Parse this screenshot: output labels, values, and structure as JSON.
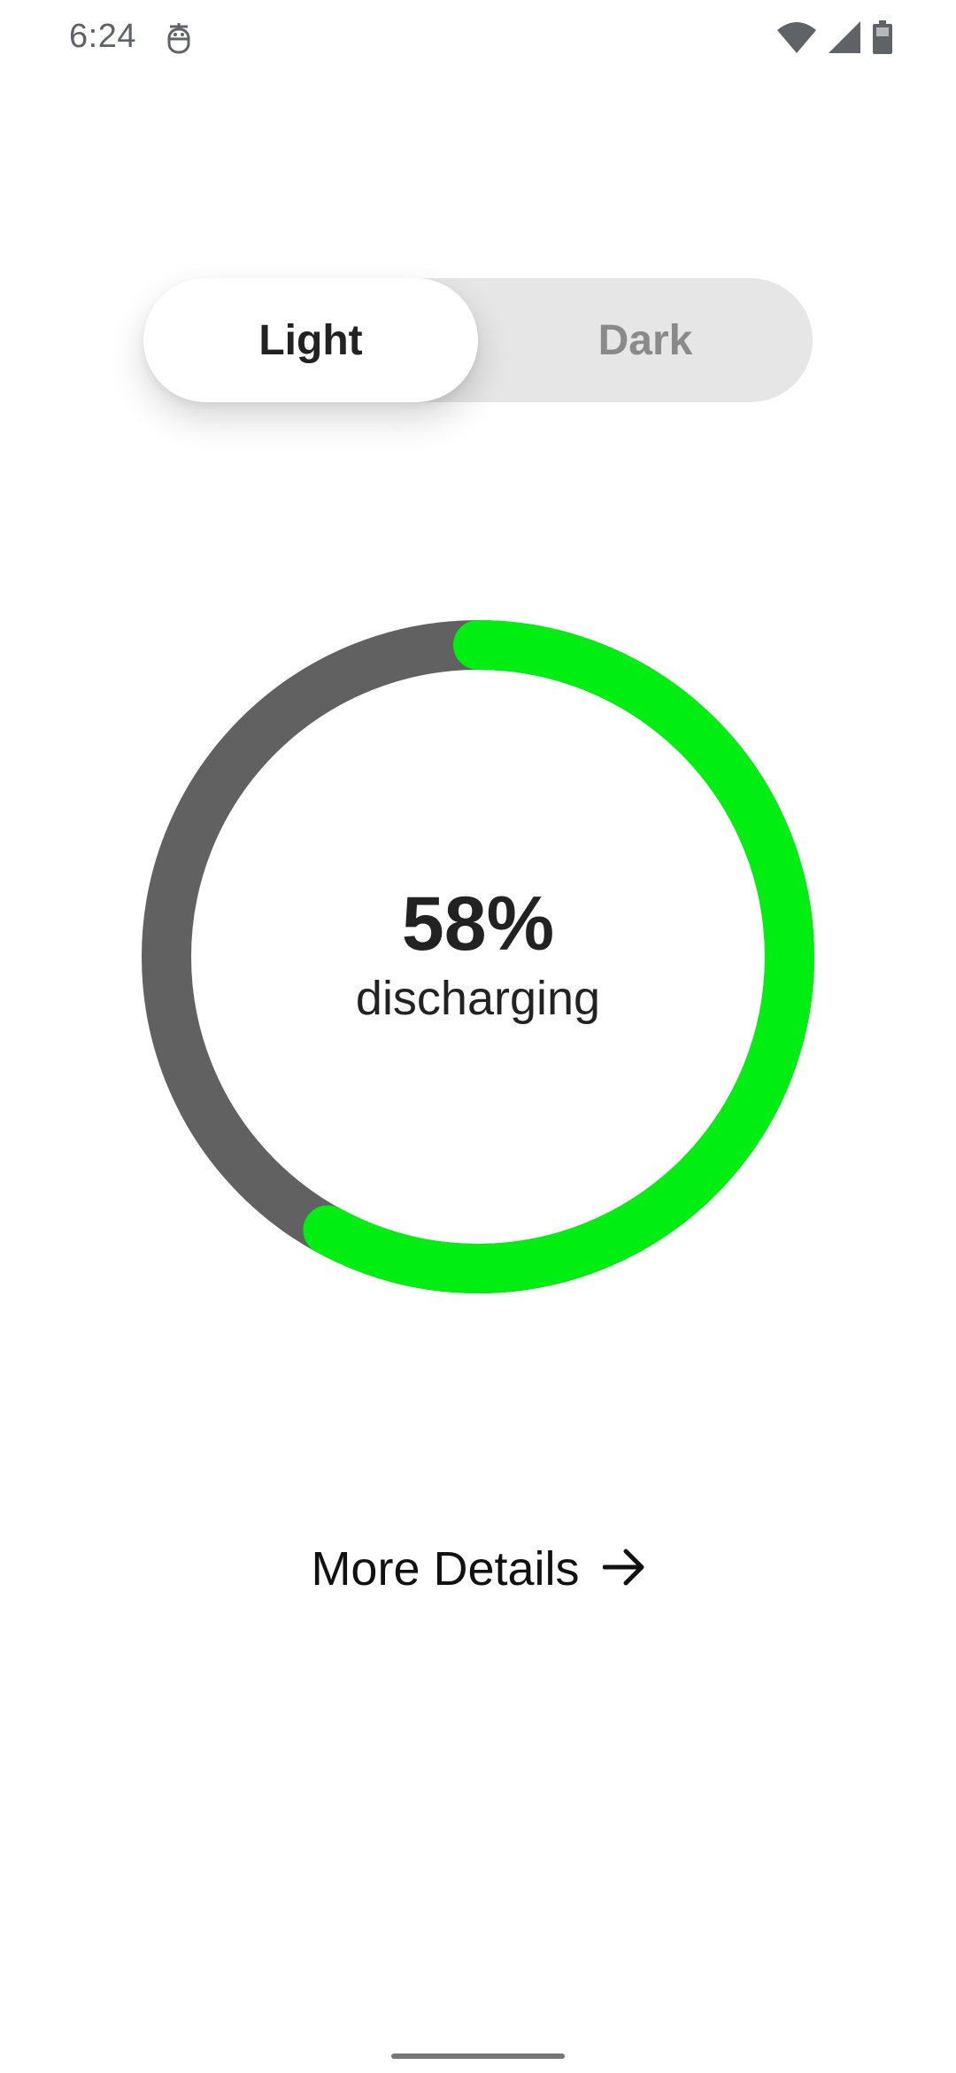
{
  "status_bar": {
    "time": "6:24",
    "icons": [
      "app-notification-icon",
      "wifi-icon",
      "cellular-signal-icon",
      "battery-icon"
    ]
  },
  "theme_toggle": {
    "options": [
      {
        "label": "Light",
        "selected": true
      },
      {
        "label": "Dark",
        "selected": false
      }
    ]
  },
  "battery": {
    "percent_value": 58,
    "percent_label": "58%",
    "status": "discharging",
    "colors": {
      "charged": "#00ee11",
      "remaining_track": "#616161"
    }
  },
  "more_details": {
    "label": "More Details",
    "icon": "arrow-right-icon"
  }
}
